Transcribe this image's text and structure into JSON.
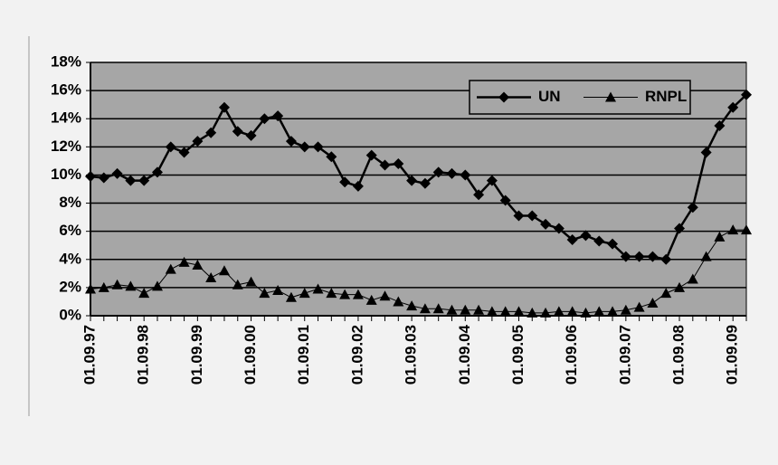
{
  "chart_data": {
    "type": "line",
    "categories": [
      "01.09.97",
      null,
      null,
      null,
      "01.09.98",
      null,
      null,
      null,
      "01.09.99",
      null,
      null,
      null,
      "01.09.00",
      null,
      null,
      null,
      "01.09.01",
      null,
      null,
      null,
      "01.09.02",
      null,
      null,
      null,
      "01.09.03",
      null,
      null,
      null,
      "01.09.04",
      null,
      null,
      null,
      "01.09.05",
      null,
      null,
      null,
      "01.09.06",
      null,
      null,
      null,
      "01.09.07",
      null,
      null,
      null,
      "01.09.08",
      null,
      null,
      null,
      "01.09.09",
      null
    ],
    "series": [
      {
        "name": "UN",
        "color": "#000000",
        "values": [
          9.9,
          9.8,
          10.1,
          9.6,
          9.6,
          10.2,
          12.0,
          11.6,
          12.4,
          13.0,
          14.8,
          13.1,
          12.8,
          14.0,
          14.2,
          12.4,
          12.0,
          12.0,
          11.3,
          9.5,
          9.2,
          11.4,
          10.7,
          10.8,
          9.6,
          9.4,
          10.2,
          10.1,
          10.0,
          8.6,
          9.6,
          8.2,
          7.1,
          7.1,
          6.5,
          6.2,
          5.4,
          5.7,
          5.3,
          5.1,
          4.2,
          4.2,
          4.2,
          4.0,
          6.2,
          7.7,
          11.6,
          13.5,
          14.8,
          15.7
        ]
      },
      {
        "name": "RNPL",
        "color": "#000000",
        "values": [
          1.9,
          2.0,
          2.2,
          2.1,
          1.6,
          2.1,
          3.3,
          3.8,
          3.6,
          2.7,
          3.2,
          2.2,
          2.4,
          1.6,
          1.8,
          1.3,
          1.6,
          1.9,
          1.6,
          1.5,
          1.5,
          1.1,
          1.4,
          1.0,
          0.7,
          0.5,
          0.5,
          0.4,
          0.4,
          0.4,
          0.3,
          0.3,
          0.3,
          0.2,
          0.2,
          0.3,
          0.3,
          0.2,
          0.3,
          0.3,
          0.4,
          0.6,
          0.9,
          1.6,
          2.0,
          2.6,
          4.2,
          5.6,
          6.1,
          6.1
        ]
      }
    ],
    "ylim": [
      0,
      18
    ],
    "yticks": [
      {
        "value": 0,
        "label": "0%"
      },
      {
        "value": 2,
        "label": "2%"
      },
      {
        "value": 4,
        "label": "4%"
      },
      {
        "value": 6,
        "label": "6%"
      },
      {
        "value": 8,
        "label": "8%"
      },
      {
        "value": 10,
        "label": "10%"
      },
      {
        "value": 12,
        "label": "12%"
      },
      {
        "value": 14,
        "label": "14%"
      },
      {
        "value": 16,
        "label": "16%"
      },
      {
        "value": 18,
        "label": "18%"
      }
    ],
    "grid": true,
    "legend": "top-right",
    "plot_background": "#a6a6a6"
  }
}
